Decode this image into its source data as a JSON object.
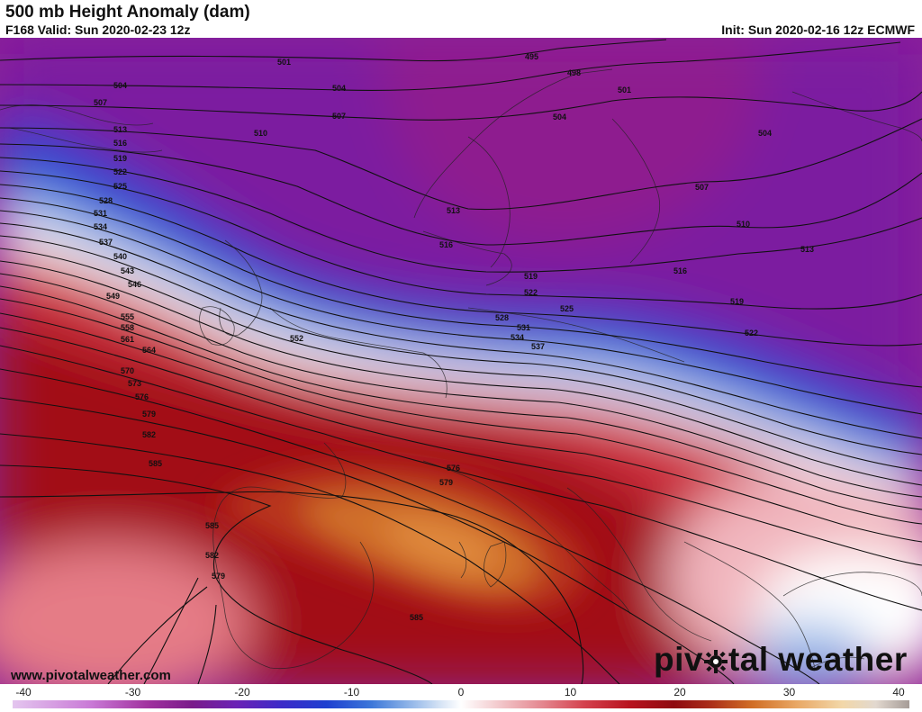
{
  "header": {
    "title": "500 mb Height Anomaly (dam)",
    "valid": "F168 Valid: Sun 2020-02-23 12z",
    "init": "Init: Sun 2020-02-16 12z ECMWF"
  },
  "footer": {
    "website": "www.pivotalweather.com",
    "brand_before": "piv",
    "brand_after": "tal weather"
  },
  "colorbar": {
    "tick_labels": [
      "-40",
      "-30",
      "-20",
      "-10",
      "0",
      "10",
      "20",
      "30",
      "40"
    ],
    "range": [
      -40,
      40
    ],
    "stops": [
      {
        "v": -40,
        "c": "#e4c6ef"
      },
      {
        "v": -33,
        "c": "#c979d6"
      },
      {
        "v": -28,
        "c": "#a1329f"
      },
      {
        "v": -24,
        "c": "#7a1b8a"
      },
      {
        "v": -20,
        "c": "#6a22b5"
      },
      {
        "v": -16,
        "c": "#3b2ac8"
      },
      {
        "v": -12,
        "c": "#1e3fd0"
      },
      {
        "v": -8,
        "c": "#3d77d9"
      },
      {
        "v": -5,
        "c": "#86aee6"
      },
      {
        "v": -2,
        "c": "#d2e1f4"
      },
      {
        "v": 0,
        "c": "#ffffff"
      },
      {
        "v": 3,
        "c": "#f4cfd2"
      },
      {
        "v": 7,
        "c": "#e58b93"
      },
      {
        "v": 11,
        "c": "#d4414d"
      },
      {
        "v": 15,
        "c": "#b8131f"
      },
      {
        "v": 19,
        "c": "#8e0a10"
      },
      {
        "v": 22,
        "c": "#a82a18"
      },
      {
        "v": 26,
        "c": "#d16e25"
      },
      {
        "v": 30,
        "c": "#e9a866"
      },
      {
        "v": 34,
        "c": "#f2d7a8"
      },
      {
        "v": 37,
        "c": "#e2d8cf"
      },
      {
        "v": 40,
        "c": "#a69c97"
      }
    ]
  },
  "contour_labels": [
    "495",
    "498",
    "501",
    "501",
    "504",
    "504",
    "504",
    "504",
    "507",
    "507",
    "507",
    "510",
    "510",
    "513",
    "513",
    "513",
    "516",
    "516",
    "516",
    "519",
    "519",
    "519",
    "522",
    "522",
    "522",
    "525",
    "525",
    "528",
    "528",
    "531",
    "531",
    "534",
    "534",
    "537",
    "537",
    "540",
    "543",
    "546",
    "549",
    "552",
    "555",
    "558",
    "561",
    "564",
    "570",
    "573",
    "576",
    "576",
    "579",
    "579",
    "579",
    "582",
    "582",
    "585",
    "585",
    "585"
  ]
}
